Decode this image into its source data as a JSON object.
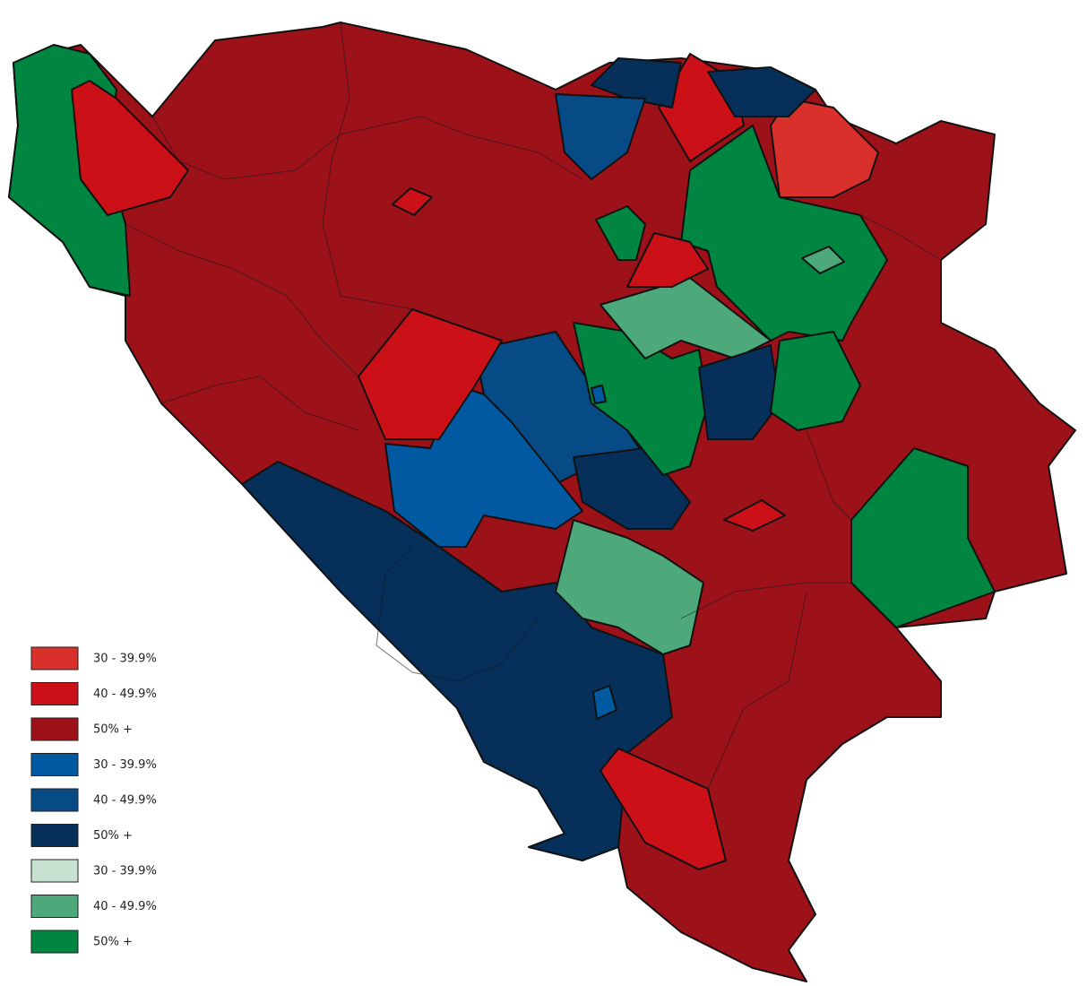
{
  "legend": {
    "items": [
      {
        "label": "30 - 39.9%",
        "color": "#d9302b"
      },
      {
        "label": "40 - 49.9%",
        "color": "#cc1018"
      },
      {
        "label": "50% +",
        "color": "#9d1118"
      },
      {
        "label": "30 - 39.9%",
        "color": "#0059a1"
      },
      {
        "label": "40 - 49.9%",
        "color": "#064b86"
      },
      {
        "label": "50% +",
        "color": "#062f5a"
      },
      {
        "label": "30 - 39.9%",
        "color": "#c8e2d2"
      },
      {
        "label": "40 - 49.9%",
        "color": "#4da97a"
      },
      {
        "label": "50% +",
        "color": "#008640"
      }
    ]
  }
}
